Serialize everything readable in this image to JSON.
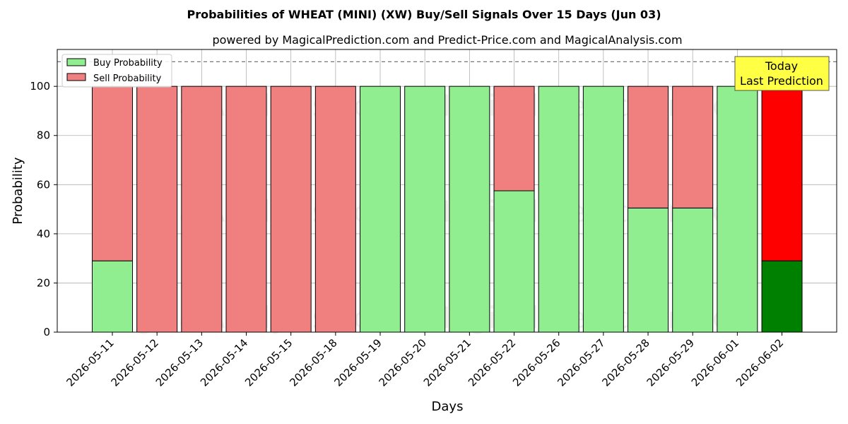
{
  "chart_data": {
    "type": "bar",
    "stacked": true,
    "title": "Probabilities of WHEAT (MINI) (XW) Buy/Sell Signals Over 15 Days (Jun 03)",
    "subtitle": "powered by MagicalPrediction.com and Predict-Price.com and MagicalAnalysis.com",
    "xlabel": "Days",
    "ylabel": "Probability",
    "ylim": [
      0,
      115
    ],
    "yticks": [
      0,
      20,
      40,
      60,
      80,
      100
    ],
    "grid": true,
    "legend_placement": "top-left",
    "reference_line": 110,
    "categories": [
      "2026-05-11",
      "2026-05-12",
      "2026-05-13",
      "2026-05-14",
      "2026-05-15",
      "2026-05-18",
      "2026-05-19",
      "2026-05-20",
      "2026-05-21",
      "2026-05-22",
      "2026-05-26",
      "2026-05-27",
      "2026-05-28",
      "2026-05-29",
      "2026-06-01",
      "2026-06-02"
    ],
    "series": [
      {
        "name": "Buy Probability",
        "color": "#90ee90",
        "values": [
          29,
          0,
          0,
          0,
          0,
          0,
          100,
          100,
          100,
          57.5,
          100,
          100,
          50.5,
          50.5,
          100,
          29
        ]
      },
      {
        "name": "Sell Probability",
        "color": "#f08080",
        "values": [
          71,
          100,
          100,
          100,
          100,
          100,
          0,
          0,
          0,
          42.5,
          0,
          0,
          49.5,
          49.5,
          0,
          71
        ]
      }
    ],
    "highlight": {
      "index": 15,
      "buy_color": "#008000",
      "sell_color": "#ff0000"
    },
    "annotation": {
      "lines": [
        "Today",
        "Last Prediction"
      ],
      "background": "#ffff44"
    },
    "watermarks": [
      "MagicalAnalysis.com",
      "MagicalPrediction.com"
    ]
  }
}
